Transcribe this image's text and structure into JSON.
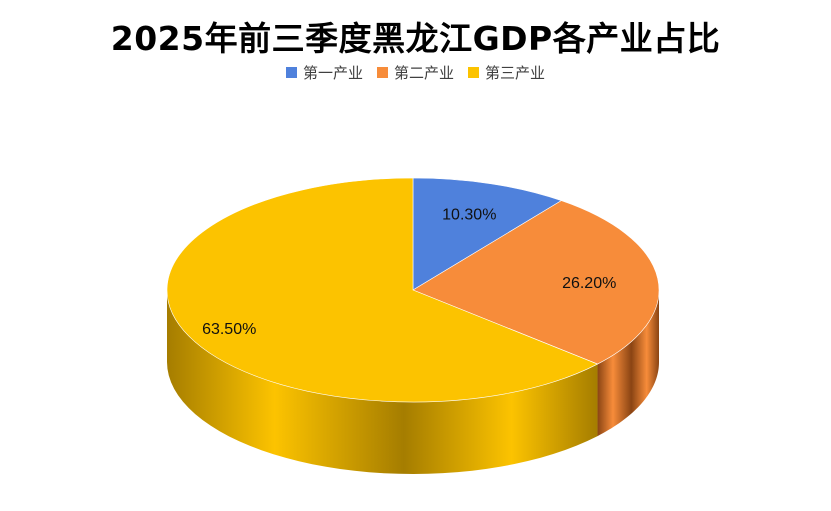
{
  "title": "2025年前三季度黑龙江GDP各产业占比",
  "chart_data": {
    "type": "pie",
    "title": "2025年前三季度黑龙江GDP各产业占比",
    "legend_position": "top",
    "style": "3d",
    "series": [
      {
        "name": "第一产业",
        "value": 10.3,
        "label": "10.30%",
        "color": "#4f81dc",
        "side_color": "#1f3f7a"
      },
      {
        "name": "第二产业",
        "value": 26.2,
        "label": "26.20%",
        "color": "#f78c3a",
        "side_color": "#8a4413"
      },
      {
        "name": "第三产业",
        "value": 63.5,
        "label": "63.50%",
        "color": "#fcc300",
        "side_color": "#a57d00"
      }
    ]
  }
}
